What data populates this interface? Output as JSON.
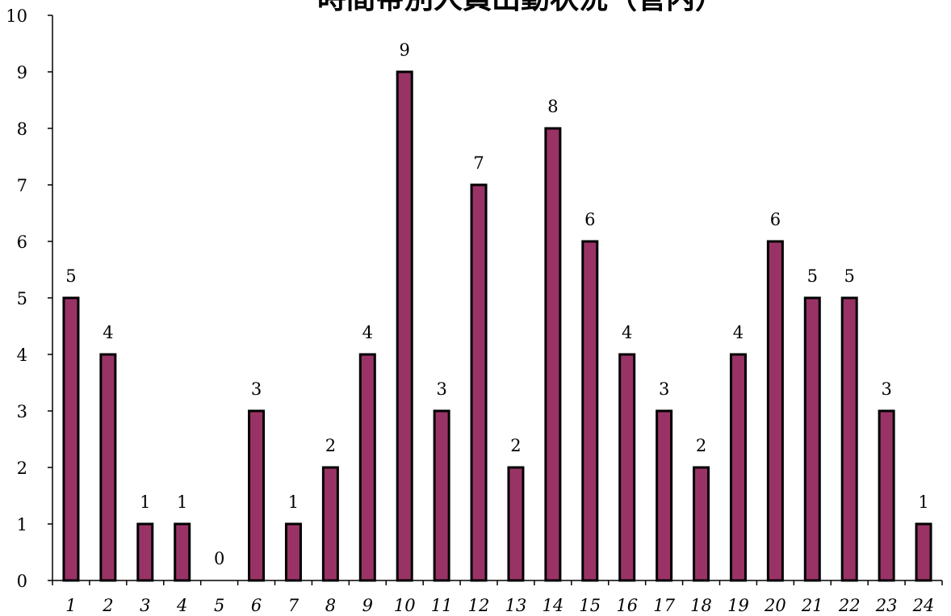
{
  "chart_data": {
    "type": "bar",
    "title": "時間帯別人員出動状況（管内）",
    "xlabel": "",
    "ylabel": "",
    "categories": [
      "1",
      "2",
      "3",
      "4",
      "5",
      "6",
      "7",
      "8",
      "9",
      "10",
      "11",
      "12",
      "13",
      "14",
      "15",
      "16",
      "17",
      "18",
      "19",
      "20",
      "21",
      "22",
      "23",
      "24"
    ],
    "values": [
      5,
      4,
      1,
      1,
      0,
      3,
      1,
      2,
      4,
      9,
      3,
      7,
      2,
      8,
      6,
      4,
      3,
      2,
      4,
      6,
      5,
      5,
      3,
      1
    ],
    "ylim": [
      0,
      10
    ],
    "yticks": [
      0,
      1,
      2,
      3,
      4,
      5,
      6,
      7,
      8,
      9,
      10
    ],
    "grid": false,
    "legend": "none",
    "bar_color": "#993366",
    "data_labels": true
  }
}
